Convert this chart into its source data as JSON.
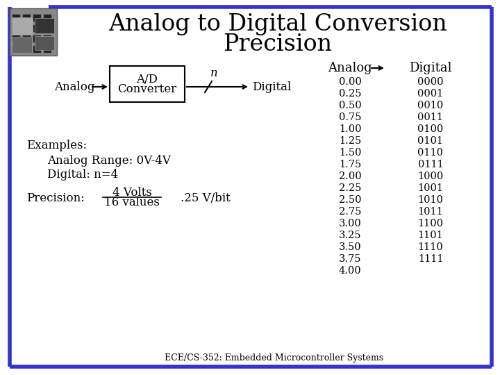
{
  "title_line1": "Analog to Digital Conversion",
  "title_line2": "Precision",
  "title_fontsize": 24,
  "bg_color": "#ffffff",
  "border_color": "#3333cc",
  "text_color": "#000000",
  "analog_values": [
    "0.00",
    "0.25",
    "0.50",
    "0.75",
    "1.00",
    "1.25",
    "1.50",
    "1.75",
    "2.00",
    "2.25",
    "2.50",
    "2.75",
    "3.00",
    "3.25",
    "3.50",
    "3.75",
    "4.00"
  ],
  "digital_values": [
    "0000",
    "0001",
    "0010",
    "0011",
    "0100",
    "0101",
    "0110",
    "0111",
    "1000",
    "1001",
    "1010",
    "1011",
    "1100",
    "1101",
    "1110",
    "1111",
    ""
  ],
  "footer": "ECE/CS-352: Embedded Microcontroller Systems",
  "body_fontsize": 12,
  "table_fontsize": 10.5,
  "footer_fontsize": 9,
  "header_fontsize": 13
}
